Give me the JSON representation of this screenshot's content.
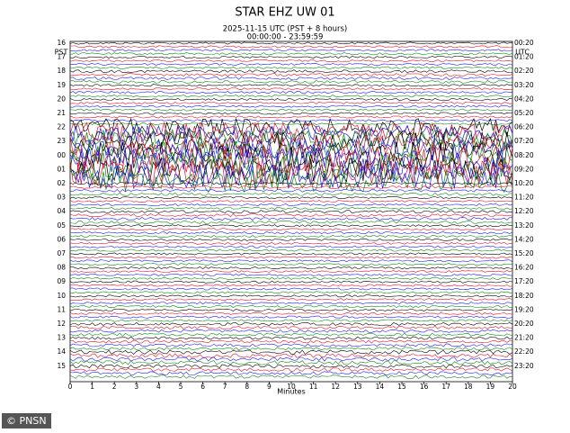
{
  "chart_data": {
    "type": "helicorder",
    "title": "STAR EHZ UW 01",
    "subtitle": "2025-11-15 UTC (PST + 8 hours)",
    "time_range": "00:00:00 - 23:59:59",
    "left_tz": "PST",
    "right_tz": "UTC",
    "left_labels": [
      "16",
      "17",
      "18",
      "19",
      "20",
      "21",
      "22",
      "23",
      "00",
      "01",
      "02",
      "03",
      "04",
      "05",
      "06",
      "07",
      "08",
      "09",
      "10",
      "11",
      "12",
      "13",
      "14",
      "15"
    ],
    "right_labels": [
      "00:20",
      "01:20",
      "02:20",
      "03:20",
      "04:20",
      "05:20",
      "06:20",
      "07:20",
      "08:20",
      "09:20",
      "10:20",
      "11:20",
      "12:20",
      "13:20",
      "14:20",
      "15:20",
      "16:20",
      "17:20",
      "18:20",
      "19:20",
      "20:20",
      "21:20",
      "22:20",
      "23:20"
    ],
    "trace_colors": [
      "#000000",
      "#e8102a",
      "#1a1aff",
      "#118811"
    ],
    "amplitude": [
      0.3,
      0.3,
      0.4,
      0.3,
      0.3,
      0.3,
      2.5,
      3,
      4,
      3.5,
      0.4,
      0.3,
      0.4,
      0.3,
      0.3,
      0.3,
      0.3,
      0.3,
      0.3,
      0.3,
      0.4,
      0.4,
      0.6,
      0.5
    ],
    "xlabel": "Minutes",
    "xlim": [
      0,
      20
    ],
    "xticks": [
      0,
      1,
      2,
      3,
      4,
      5,
      6,
      7,
      8,
      9,
      10,
      11,
      12,
      13,
      14,
      15,
      16,
      17,
      18,
      19,
      20
    ]
  }
}
